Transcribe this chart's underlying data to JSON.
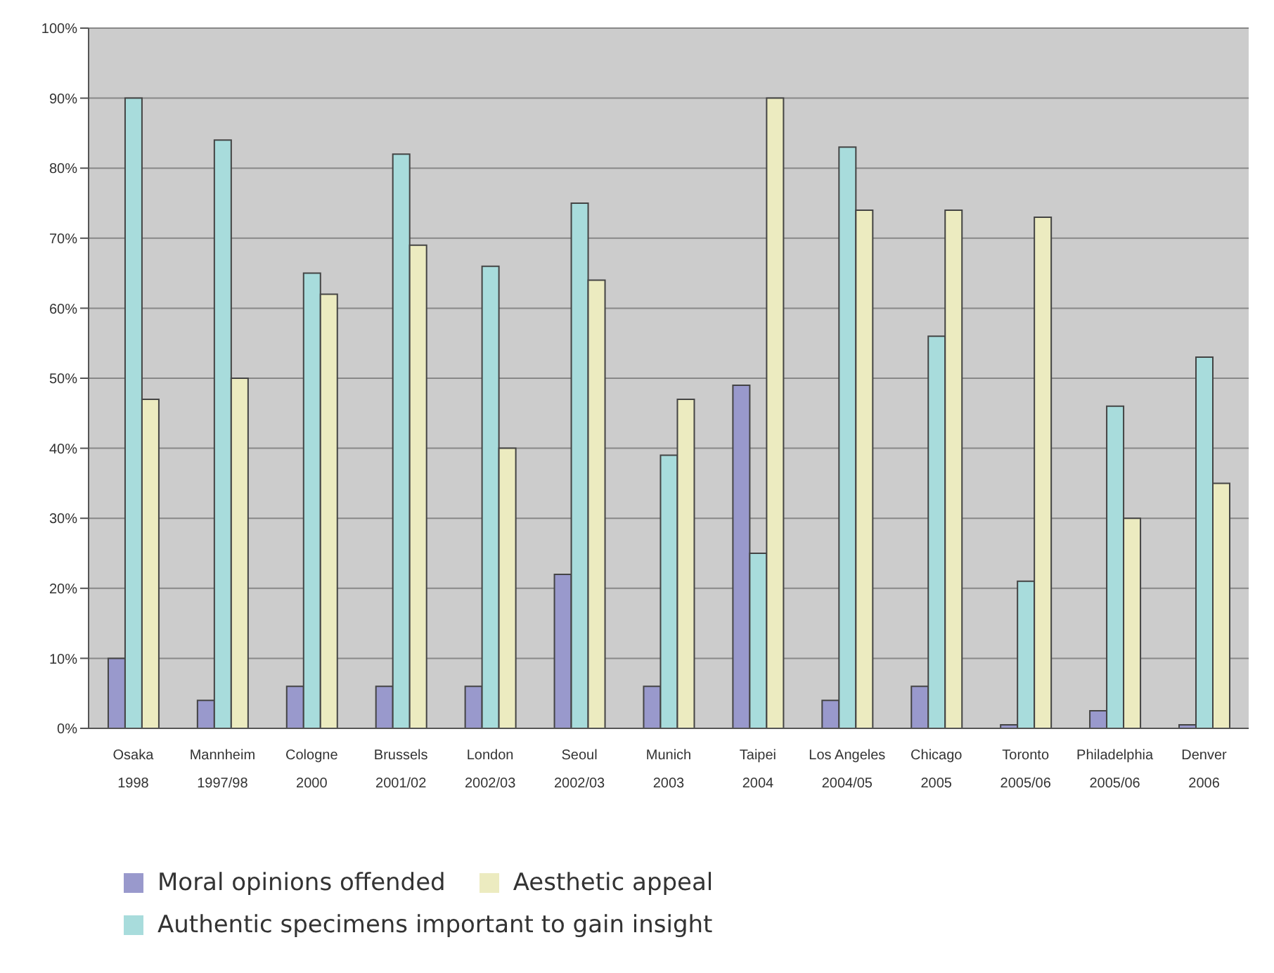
{
  "chart_data": {
    "type": "bar",
    "categories": [
      "Osaka\n1998",
      "Mannheim\n1997/98",
      "Cologne\n2000",
      "Brussels\n2001/02",
      "London\n2002/03",
      "Seoul\n2002/03",
      "Munich\n2003",
      "Taipei\n2004",
      "Los Angeles\n2004/05",
      "Chicago\n2005",
      "Toronto\n2005/06",
      "Philadelphia\n2005/06",
      "Denver\n2006"
    ],
    "series": [
      {
        "name": "Moral opinions offended",
        "color": "#9999cc",
        "values": [
          10,
          4,
          6,
          6,
          6,
          22,
          6,
          49,
          4,
          6,
          0.5,
          2.5,
          0.5
        ]
      },
      {
        "name": "Authentic specimens important to gain insight",
        "color": "#a8dcdc",
        "values": [
          90,
          84,
          65,
          82,
          66,
          75,
          39,
          25,
          83,
          56,
          21,
          46,
          53
        ]
      },
      {
        "name": "Aesthetic appeal",
        "color": "#ecebc0",
        "values": [
          47,
          50,
          62,
          69,
          40,
          64,
          47,
          90,
          74,
          74,
          73,
          30,
          35
        ]
      }
    ],
    "ylim": [
      0,
      100
    ],
    "yticks": [
      {
        "value": 0,
        "label": "0%"
      },
      {
        "value": 10,
        "label": "10%"
      },
      {
        "value": 20,
        "label": "20%"
      },
      {
        "value": 30,
        "label": "30%"
      },
      {
        "value": 40,
        "label": "40%"
      },
      {
        "value": 50,
        "label": "50%"
      },
      {
        "value": 60,
        "label": "60%"
      },
      {
        "value": 70,
        "label": "70%"
      },
      {
        "value": 80,
        "label": "80%"
      },
      {
        "value": 90,
        "label": "90%"
      },
      {
        "value": 100,
        "label": "100%"
      }
    ],
    "grid": "y",
    "legend": "bottom left"
  }
}
